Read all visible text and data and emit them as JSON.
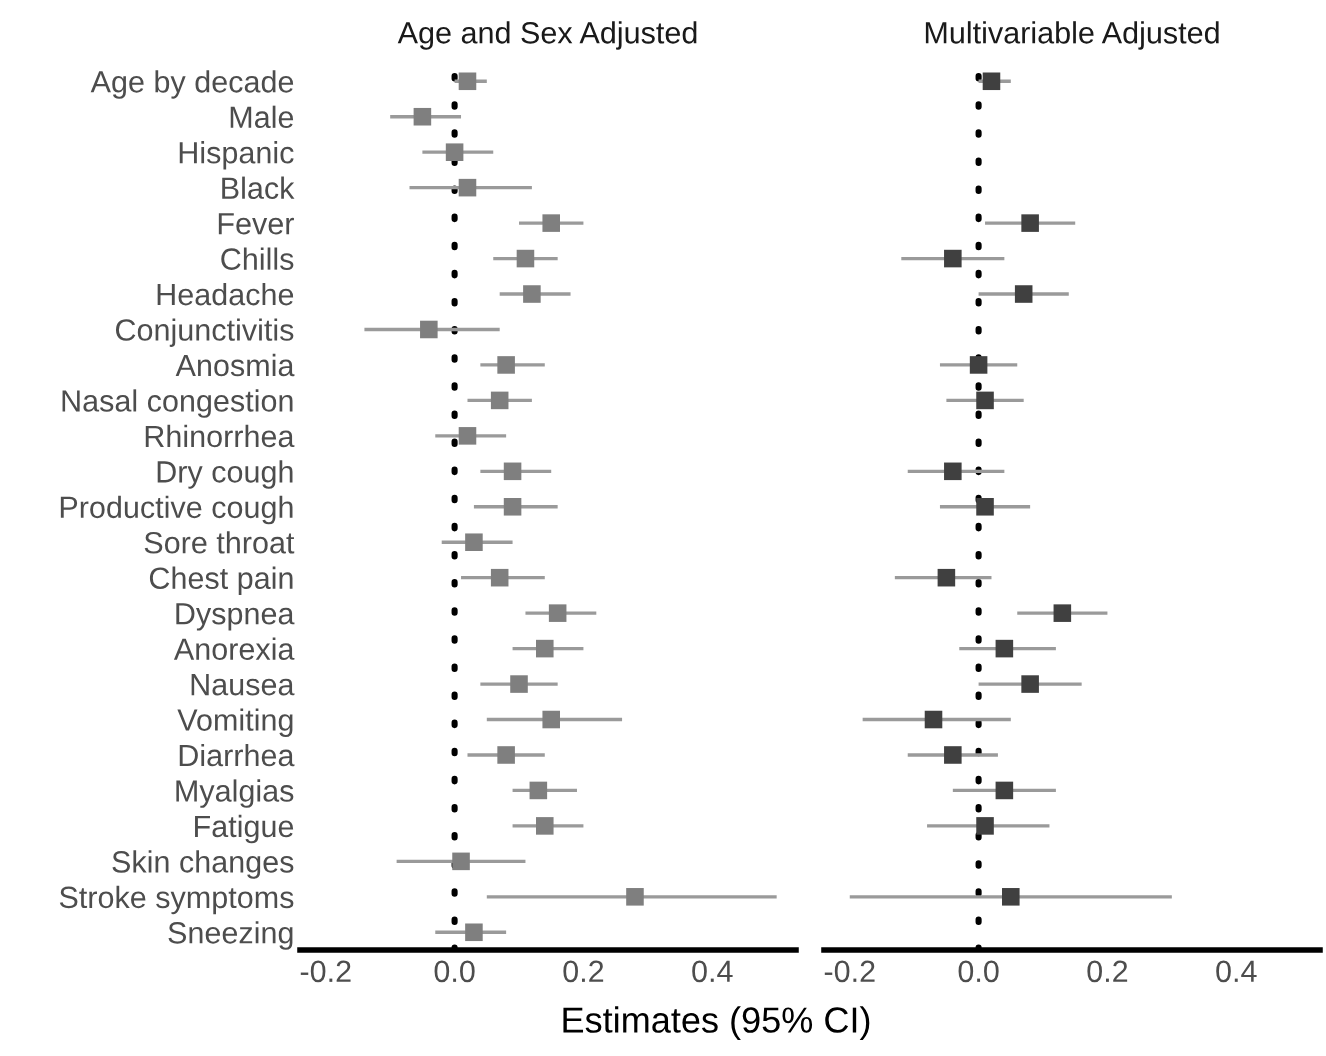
{
  "chart_data": [
    {
      "type": "scatter",
      "orientation": "horizontal",
      "title": "Age and Sex Adjusted",
      "marker": "square",
      "grid": false,
      "legend": false,
      "categories": [
        "Age by decade",
        "Male",
        "Hispanic",
        "Black",
        "Fever",
        "Chills",
        "Headache",
        "Conjunctivitis",
        "Anosmia",
        "Nasal congestion",
        "Rhinorrhea",
        "Dry cough",
        "Productive cough",
        "Sore throat",
        "Chest pain",
        "Dyspnea",
        "Anorexia",
        "Nausea",
        "Vomiting",
        "Diarrhea",
        "Myalgias",
        "Fatigue",
        "Skin changes",
        "Stroke symptoms",
        "Sneezing"
      ],
      "series": [
        {
          "color": "#7f7f7f",
          "values": [
            0.02,
            -0.05,
            0.0,
            0.02,
            0.15,
            0.11,
            0.12,
            -0.04,
            0.08,
            0.07,
            0.02,
            0.09,
            0.09,
            0.03,
            0.07,
            0.16,
            0.14,
            0.1,
            0.15,
            0.08,
            0.13,
            0.14,
            0.01,
            0.28,
            0.03
          ],
          "errors": [
            [
              0.0,
              0.05
            ],
            [
              -0.1,
              0.01
            ],
            [
              -0.05,
              0.06
            ],
            [
              -0.07,
              0.12
            ],
            [
              0.1,
              0.2
            ],
            [
              0.06,
              0.16
            ],
            [
              0.07,
              0.18
            ],
            [
              -0.14,
              0.07
            ],
            [
              0.04,
              0.14
            ],
            [
              0.02,
              0.12
            ],
            [
              -0.03,
              0.08
            ],
            [
              0.04,
              0.15
            ],
            [
              0.03,
              0.16
            ],
            [
              -0.02,
              0.09
            ],
            [
              0.01,
              0.14
            ],
            [
              0.11,
              0.22
            ],
            [
              0.09,
              0.2
            ],
            [
              0.04,
              0.16
            ],
            [
              0.05,
              0.26
            ],
            [
              0.02,
              0.14
            ],
            [
              0.09,
              0.19
            ],
            [
              0.09,
              0.2
            ],
            [
              -0.09,
              0.11
            ],
            [
              0.05,
              0.5
            ],
            [
              -0.03,
              0.08
            ]
          ]
        }
      ],
      "xlim": [
        -0.24,
        0.53
      ],
      "xticks": [
        {
          "value": -0.2,
          "label": "-0.2"
        },
        {
          "value": 0.0,
          "label": "0.0"
        },
        {
          "value": 0.2,
          "label": "0.2"
        },
        {
          "value": 0.4,
          "label": "0.4"
        }
      ],
      "ref_lines": [
        {
          "axis": "x",
          "value": 0,
          "color": "#000000",
          "line_style": "dotted"
        }
      ]
    },
    {
      "type": "scatter",
      "orientation": "horizontal",
      "title": "Multivariable Adjusted",
      "xlabel": "Estimates (95% CI)",
      "marker": "square",
      "grid": false,
      "legend": false,
      "tick_labels": "x",
      "categories": [
        null,
        null,
        null,
        null,
        null,
        null,
        null,
        null,
        null,
        null,
        null,
        null,
        null,
        null,
        null,
        null,
        null,
        null,
        null,
        null,
        null,
        null,
        null,
        null,
        null
      ],
      "series": [
        {
          "color": "#404040",
          "values": [
            0.02,
            null,
            null,
            null,
            0.08,
            -0.04,
            0.07,
            null,
            0.0,
            0.01,
            null,
            -0.04,
            0.01,
            null,
            -0.05,
            0.13,
            0.04,
            0.08,
            -0.07,
            -0.04,
            0.04,
            0.01,
            null,
            0.05,
            null
          ],
          "errors": [
            [
              0.0,
              0.05
            ],
            null,
            null,
            null,
            [
              0.01,
              0.15
            ],
            [
              -0.12,
              0.04
            ],
            [
              0.0,
              0.14
            ],
            null,
            [
              -0.06,
              0.06
            ],
            [
              -0.05,
              0.07
            ],
            null,
            [
              -0.11,
              0.04
            ],
            [
              -0.06,
              0.08
            ],
            null,
            [
              -0.13,
              0.02
            ],
            [
              0.06,
              0.2
            ],
            [
              -0.03,
              0.12
            ],
            [
              0.0,
              0.16
            ],
            [
              -0.18,
              0.05
            ],
            [
              -0.11,
              0.03
            ],
            [
              -0.04,
              0.12
            ],
            [
              -0.08,
              0.11
            ],
            null,
            [
              -0.2,
              0.3
            ],
            null
          ]
        }
      ],
      "xlim": [
        -0.24,
        0.53
      ],
      "xticks": [
        {
          "value": -0.2,
          "label": "-0.2"
        },
        {
          "value": 0.0,
          "label": "0.0"
        },
        {
          "value": 0.2,
          "label": "0.2"
        },
        {
          "value": 0.4,
          "label": "0.4"
        }
      ],
      "ref_lines": [
        {
          "axis": "x",
          "value": 0,
          "color": "#000000",
          "line_style": "dotted"
        }
      ]
    }
  ]
}
